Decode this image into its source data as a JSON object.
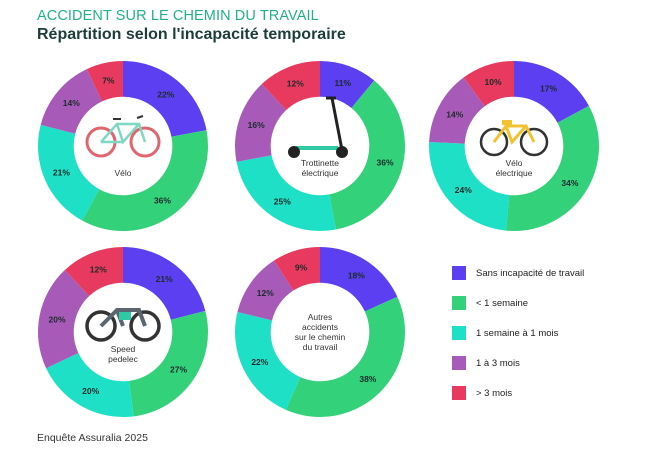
{
  "header": {
    "title": "ACCIDENT SUR LE CHEMIN DU TRAVAIL",
    "subtitle": "Répartition selon l'incapacité temporaire"
  },
  "source": "Enquête Assuralia 2025",
  "colors": {
    "sans_incapacite": "#5b3ff0",
    "moins_1_semaine": "#33d17a",
    "1_semaine_1_mois": "#1ee0c6",
    "1_a_3_mois": "#a85ab8",
    "plus_3_mois": "#e83a5e"
  },
  "chart_data": {
    "type": "pie",
    "categories": [
      "Sans incapacité de travail",
      "< 1 semaine",
      "1 semaine à 1 mois",
      "1 à 3 mois",
      "> 3 mois"
    ],
    "series": [
      {
        "name": "Vélo",
        "center_lines": [
          "Vélo"
        ],
        "icon": "bicycle-icon",
        "values": [
          22,
          36,
          21,
          14,
          7
        ]
      },
      {
        "name": "Trottinette électrique",
        "center_lines": [
          "Trottinette",
          "électrique"
        ],
        "icon": "scooter-icon",
        "values": [
          11,
          36,
          25,
          16,
          12
        ]
      },
      {
        "name": "Vélo électrique",
        "center_lines": [
          "Vélo",
          "électrique"
        ],
        "icon": "ebike-icon",
        "values": [
          17,
          34,
          24,
          14,
          10
        ]
      },
      {
        "name": "Speed pedelec",
        "center_lines": [
          "Speed",
          "pedelec"
        ],
        "icon": "speed-pedelec-icon",
        "values": [
          21,
          27,
          20,
          20,
          12
        ]
      },
      {
        "name": "Autres accidents sur le chemin du travail",
        "center_lines": [
          "Autres",
          "accidents",
          "sur le chemin",
          "du travail"
        ],
        "icon": "",
        "values": [
          18,
          38,
          22,
          12,
          9
        ]
      }
    ],
    "value_suffix": "%",
    "legend_position": "right"
  }
}
